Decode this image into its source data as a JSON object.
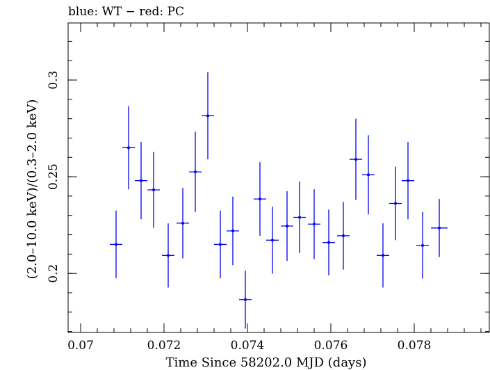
{
  "chart_data": {
    "type": "scatter",
    "title": "blue: WT − red: PC",
    "xlabel": "Time Since 58202.0 MJD (days)",
    "ylabel": "(2.0–10.0 keV)/(0.3–2.0 keV)",
    "xlim": [
      0.0697,
      0.0798
    ],
    "ylim": [
      0.1695,
      0.3295
    ],
    "xticks": [
      0.07,
      0.072,
      0.074,
      0.076,
      0.078
    ],
    "xtick_labels": [
      "0.07",
      "0.072",
      "0.074",
      "0.076",
      "0.078"
    ],
    "yticks": [
      0.2,
      0.25,
      0.3
    ],
    "ytick_labels": [
      "0.2",
      "0.25",
      "0.3"
    ],
    "grid": false,
    "color": "#0000ee",
    "series": [
      {
        "x_err": 0.00015,
        "points": [
          {
            "x": 0.07085,
            "y": 0.215,
            "yerr": 0.0175
          },
          {
            "x": 0.07115,
            "y": 0.265,
            "yerr": 0.0215
          },
          {
            "x": 0.07145,
            "y": 0.248,
            "yerr": 0.02
          },
          {
            "x": 0.07175,
            "y": 0.2432,
            "yerr": 0.0196
          },
          {
            "x": 0.0721,
            "y": 0.2093,
            "yerr": 0.0166
          },
          {
            "x": 0.07245,
            "y": 0.226,
            "yerr": 0.0182
          },
          {
            "x": 0.07275,
            "y": 0.2525,
            "yerr": 0.0207
          },
          {
            "x": 0.07305,
            "y": 0.2815,
            "yerr": 0.0225
          },
          {
            "x": 0.07335,
            "y": 0.215,
            "yerr": 0.0175
          },
          {
            "x": 0.07365,
            "y": 0.222,
            "yerr": 0.0177
          },
          {
            "x": 0.07395,
            "y": 0.1865,
            "yerr": 0.015
          },
          {
            "x": 0.0743,
            "y": 0.2385,
            "yerr": 0.019
          },
          {
            "x": 0.0746,
            "y": 0.2172,
            "yerr": 0.0173
          },
          {
            "x": 0.07495,
            "y": 0.2245,
            "yerr": 0.018
          },
          {
            "x": 0.07525,
            "y": 0.229,
            "yerr": 0.0185
          },
          {
            "x": 0.0756,
            "y": 0.2255,
            "yerr": 0.018
          },
          {
            "x": 0.07595,
            "y": 0.216,
            "yerr": 0.017
          },
          {
            "x": 0.0763,
            "y": 0.2195,
            "yerr": 0.0175
          },
          {
            "x": 0.0766,
            "y": 0.259,
            "yerr": 0.021
          },
          {
            "x": 0.0769,
            "y": 0.251,
            "yerr": 0.0205
          },
          {
            "x": 0.07725,
            "y": 0.2093,
            "yerr": 0.0166
          },
          {
            "x": 0.07755,
            "y": 0.2362,
            "yerr": 0.019
          },
          {
            "x": 0.07785,
            "y": 0.248,
            "yerr": 0.02
          },
          {
            "x": 0.0782,
            "y": 0.2145,
            "yerr": 0.0172
          },
          {
            "x": 0.0786,
            "y": 0.2235,
            "yerr": 0.015,
            "xerr": 0.0002
          }
        ]
      }
    ]
  }
}
